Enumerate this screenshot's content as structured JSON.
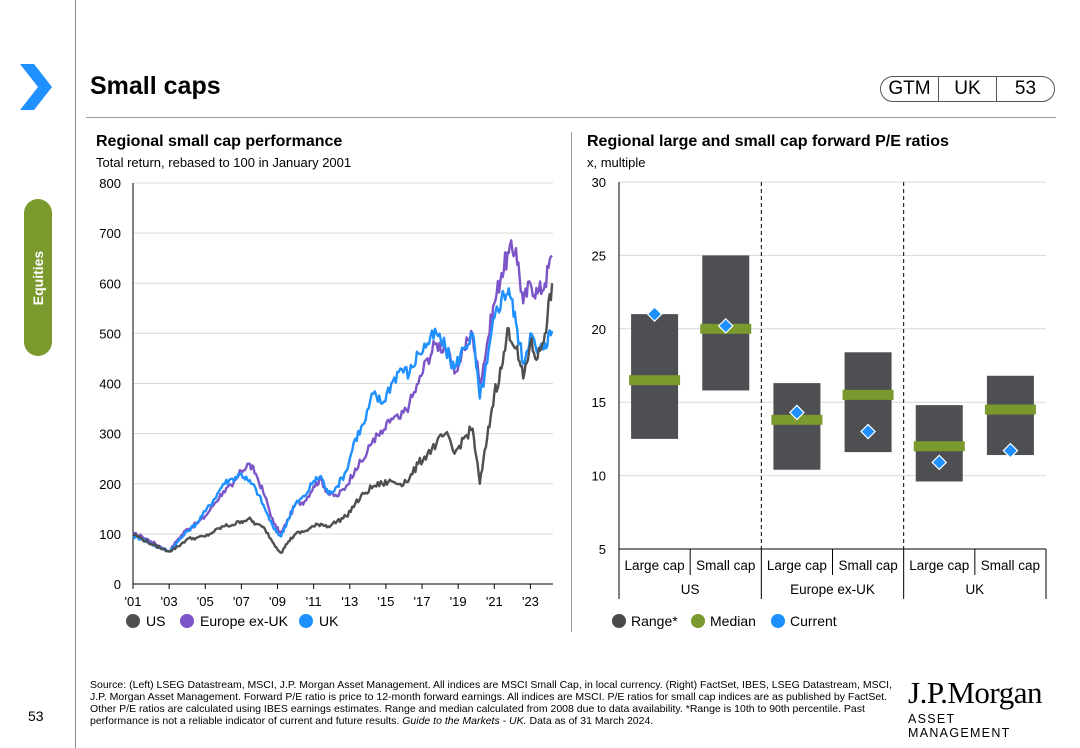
{
  "page": {
    "title": "Small caps",
    "badge": [
      "GTM",
      "UK",
      "53"
    ],
    "section_tab": "Equities",
    "page_number": "53",
    "footnote": "Source: (Left) LSEG Datastream, MSCI, J.P. Morgan Asset Management. All indices are MSCI Small Cap, in local currency. (Right) FactSet, IBES, LSEG Datastream, MSCI, J.P. Morgan Asset Management. Forward P/E ratio is price to 12-month forward earnings. All indices are MSCI. P/E ratios for small cap indices are as published by FactSet. Other P/E ratios are calculated using IBES earnings estimates. Range and median calculated from 2008 due to data availability. *Range is 10th to 90th percentile. Past performance is not a reliable indicator of current and future results.",
    "footnote_guide": "Guide to the Markets - UK.",
    "footnote_tail": "Data as of 31 March 2024.",
    "logo_main": "J.P.Morgan",
    "logo_sub": "ASSET MANAGEMENT",
    "colors": {
      "accent": "#1e90ff",
      "tab": "#7b9a2d"
    }
  },
  "chart_data": [
    {
      "type": "line",
      "title": "Regional small cap performance",
      "subtitle": "Total return, rebased to 100 in January 2001",
      "ylim": [
        0,
        800
      ],
      "yticks": [
        0,
        100,
        200,
        300,
        400,
        500,
        600,
        700,
        800
      ],
      "xlim": [
        2001,
        2024.25
      ],
      "xticks": [
        2001,
        2003,
        2005,
        2007,
        2009,
        2011,
        2013,
        2015,
        2017,
        2019,
        2021,
        2023
      ],
      "xtick_labels": [
        "'01",
        "'03",
        "'05",
        "'07",
        "'09",
        "'11",
        "'13",
        "'15",
        "'17",
        "'19",
        "'21",
        "'23"
      ],
      "legend": "bottom",
      "series": [
        {
          "name": "Europe ex-UK",
          "color": "#7c56c8",
          "x": [
            2001,
            2001.5,
            2002,
            2002.5,
            2003,
            2003.5,
            2004,
            2004.5,
            2005,
            2005.5,
            2006,
            2006.5,
            2007,
            2007.4,
            2007.8,
            2008.3,
            2008.8,
            2009.2,
            2009.6,
            2010,
            2010.5,
            2011,
            2011.4,
            2011.8,
            2012.3,
            2012.8,
            2013.3,
            2013.8,
            2014.3,
            2014.8,
            2015.3,
            2015.8,
            2016.3,
            2016.8,
            2017.3,
            2017.8,
            2018.3,
            2018.8,
            2019.3,
            2019.8,
            2020.2,
            2020.6,
            2021,
            2021.4,
            2021.8,
            2022.2,
            2022.6,
            2023,
            2023.4,
            2023.8,
            2024.2
          ],
          "y": [
            100,
            95,
            85,
            75,
            65,
            90,
            110,
            120,
            135,
            160,
            185,
            195,
            225,
            240,
            220,
            175,
            120,
            100,
            130,
            160,
            165,
            195,
            210,
            180,
            175,
            195,
            230,
            250,
            290,
            300,
            330,
            330,
            360,
            400,
            450,
            480,
            470,
            420,
            470,
            500,
            400,
            480,
            560,
            620,
            660,
            670,
            560,
            600,
            580,
            600,
            655
          ]
        },
        {
          "name": "UK",
          "color": "#1e90ff",
          "x": [
            2001,
            2001.5,
            2002,
            2002.5,
            2003,
            2003.5,
            2004,
            2004.5,
            2005,
            2005.5,
            2006,
            2006.5,
            2007,
            2007.4,
            2007.8,
            2008.3,
            2008.8,
            2009.2,
            2009.6,
            2010,
            2010.5,
            2011,
            2011.4,
            2011.8,
            2012.3,
            2012.8,
            2013.3,
            2013.8,
            2014.3,
            2014.8,
            2015.3,
            2015.8,
            2016.3,
            2016.8,
            2017.3,
            2017.8,
            2018.3,
            2018.8,
            2019.3,
            2019.8,
            2020.2,
            2020.6,
            2021,
            2021.4,
            2021.8,
            2022.2,
            2022.6,
            2023,
            2023.4,
            2023.8,
            2024.2
          ],
          "y": [
            95,
            90,
            80,
            72,
            65,
            85,
            105,
            120,
            145,
            170,
            200,
            210,
            220,
            205,
            190,
            150,
            110,
            95,
            130,
            160,
            175,
            205,
            215,
            180,
            195,
            225,
            290,
            320,
            380,
            360,
            400,
            430,
            420,
            460,
            480,
            500,
            470,
            430,
            470,
            500,
            370,
            440,
            530,
            570,
            590,
            520,
            440,
            500,
            460,
            480,
            505
          ]
        },
        {
          "name": "US",
          "color": "#4f4f4f",
          "x": [
            2001,
            2001.5,
            2002,
            2002.5,
            2003,
            2003.5,
            2004,
            2004.5,
            2005,
            2005.5,
            2006,
            2006.5,
            2007,
            2007.4,
            2007.8,
            2008.3,
            2008.8,
            2009.2,
            2009.6,
            2010,
            2010.5,
            2011,
            2011.4,
            2011.8,
            2012.3,
            2012.8,
            2013.3,
            2013.8,
            2014.3,
            2014.8,
            2015.3,
            2015.8,
            2016.3,
            2016.8,
            2017.3,
            2017.8,
            2018.3,
            2018.8,
            2019.3,
            2019.8,
            2020.2,
            2020.6,
            2021,
            2021.4,
            2021.8,
            2022.2,
            2022.6,
            2023,
            2023.4,
            2023.8,
            2024.2
          ],
          "y": [
            100,
            90,
            80,
            72,
            65,
            75,
            90,
            92,
            95,
            105,
            115,
            118,
            125,
            130,
            120,
            110,
            80,
            62,
            85,
            100,
            105,
            115,
            120,
            115,
            125,
            135,
            160,
            180,
            195,
            200,
            205,
            200,
            210,
            240,
            260,
            280,
            300,
            260,
            290,
            310,
            200,
            290,
            380,
            430,
            510,
            470,
            410,
            480,
            450,
            500,
            600
          ]
        }
      ]
    },
    {
      "type": "range",
      "title": "Regional large and small cap forward P/E ratios",
      "subtitle": "x, multiple",
      "ylim": [
        5,
        30
      ],
      "yticks": [
        5,
        10,
        15,
        20,
        25,
        30
      ],
      "legend": [
        "Range*",
        "Median",
        "Current"
      ],
      "legend_colors": [
        "#4a4a4a",
        "#7b9a2d",
        "#1e90ff"
      ],
      "groups": [
        "US",
        "Europe ex-UK",
        "UK"
      ],
      "categories": [
        "Large cap",
        "Small cap",
        "Large cap",
        "Small cap",
        "Large cap",
        "Small cap"
      ],
      "range_low": [
        12.5,
        15.8,
        10.4,
        11.6,
        9.6,
        11.4
      ],
      "range_high": [
        21.0,
        25.0,
        16.3,
        18.4,
        14.8,
        16.8
      ],
      "median": [
        16.5,
        20.0,
        13.8,
        15.5,
        12.0,
        14.5
      ],
      "current": [
        21.0,
        20.2,
        14.3,
        13.0,
        10.9,
        11.7
      ]
    }
  ]
}
